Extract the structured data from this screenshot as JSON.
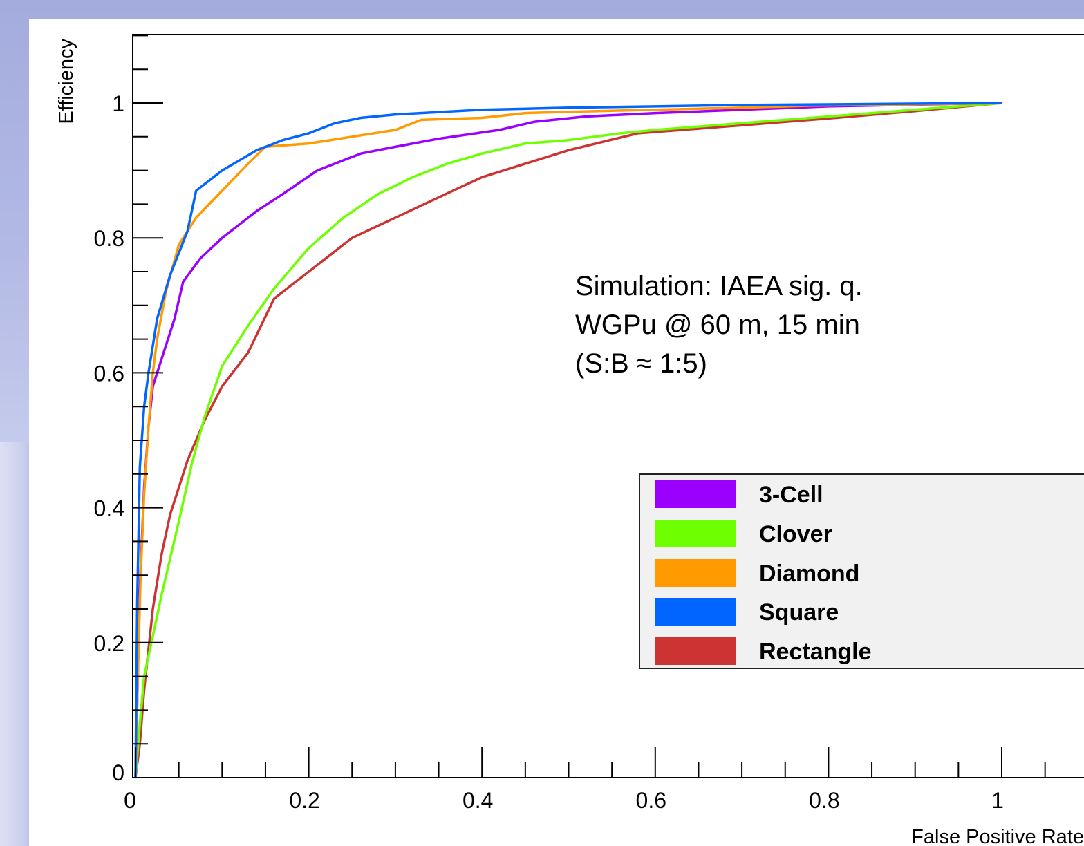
{
  "chart_data": {
    "type": "line",
    "title": "",
    "xlabel": "False Positive Rate",
    "ylabel": "Efficiency",
    "xlim": [
      0,
      1.05
    ],
    "ylim": [
      0,
      1.1
    ],
    "x_major_ticks": [
      "0",
      "0.2",
      "0.4",
      "0.6",
      "0.8",
      "1"
    ],
    "y_major_ticks": [
      "0",
      "0.2",
      "0.4",
      "0.6",
      "0.8",
      "1"
    ],
    "annotation": [
      "Simulation: IAEA sig. q.",
      "WGPu @ 60 m, 15 min",
      "(S:B ≈ 1:5)"
    ],
    "legend_position": "right",
    "series": [
      {
        "name": "3-Cell",
        "color": "#9b00ff",
        "x": [
          0,
          0.005,
          0.01,
          0.015,
          0.02,
          0.03,
          0.045,
          0.055,
          0.075,
          0.1,
          0.14,
          0.17,
          0.21,
          0.26,
          0.3,
          0.35,
          0.42,
          0.46,
          0.52,
          0.6,
          0.7,
          0.8,
          1.0
        ],
        "y": [
          0,
          0.28,
          0.43,
          0.52,
          0.58,
          0.62,
          0.68,
          0.735,
          0.77,
          0.8,
          0.84,
          0.865,
          0.9,
          0.925,
          0.935,
          0.947,
          0.96,
          0.972,
          0.98,
          0.985,
          0.99,
          0.995,
          1.0
        ]
      },
      {
        "name": "Clover",
        "color": "#6eff00",
        "x": [
          0,
          0.005,
          0.01,
          0.02,
          0.03,
          0.05,
          0.065,
          0.08,
          0.1,
          0.13,
          0.16,
          0.2,
          0.24,
          0.28,
          0.32,
          0.36,
          0.4,
          0.45,
          0.5,
          0.56,
          0.6,
          0.7,
          0.8,
          0.9,
          1.0
        ],
        "y": [
          0,
          0.08,
          0.15,
          0.21,
          0.27,
          0.38,
          0.465,
          0.535,
          0.61,
          0.67,
          0.725,
          0.785,
          0.83,
          0.865,
          0.89,
          0.91,
          0.925,
          0.94,
          0.945,
          0.955,
          0.96,
          0.97,
          0.98,
          0.99,
          1.0
        ]
      },
      {
        "name": "Diamond",
        "color": "#ff9a00",
        "x": [
          0,
          0.003,
          0.006,
          0.01,
          0.015,
          0.02,
          0.025,
          0.035,
          0.05,
          0.07,
          0.1,
          0.13,
          0.15,
          0.2,
          0.25,
          0.3,
          0.33,
          0.4,
          0.45,
          0.5,
          0.6,
          0.7,
          0.78,
          0.9,
          1.0
        ],
        "y": [
          0,
          0.17,
          0.3,
          0.42,
          0.52,
          0.6,
          0.65,
          0.72,
          0.79,
          0.83,
          0.87,
          0.91,
          0.935,
          0.94,
          0.95,
          0.96,
          0.975,
          0.978,
          0.985,
          0.987,
          0.99,
          0.993,
          0.996,
          0.998,
          1.0
        ]
      },
      {
        "name": "Square",
        "color": "#0066ff",
        "x": [
          0,
          0.002,
          0.005,
          0.01,
          0.015,
          0.025,
          0.04,
          0.06,
          0.07,
          0.09,
          0.1,
          0.12,
          0.14,
          0.17,
          0.2,
          0.23,
          0.26,
          0.3,
          0.4,
          0.5,
          0.6,
          0.7,
          0.8,
          1.0
        ],
        "y": [
          0,
          0.26,
          0.46,
          0.55,
          0.6,
          0.68,
          0.745,
          0.81,
          0.87,
          0.89,
          0.9,
          0.915,
          0.93,
          0.945,
          0.955,
          0.97,
          0.978,
          0.983,
          0.99,
          0.993,
          0.995,
          0.997,
          0.998,
          1.0
        ]
      },
      {
        "name": "Rectangle",
        "color": "#cc3333",
        "x": [
          0,
          0.005,
          0.01,
          0.02,
          0.03,
          0.04,
          0.06,
          0.08,
          0.1,
          0.13,
          0.16,
          0.2,
          0.25,
          0.3,
          0.35,
          0.4,
          0.45,
          0.5,
          0.58,
          0.7,
          0.8,
          0.9,
          1.0
        ],
        "y": [
          0,
          0.05,
          0.13,
          0.25,
          0.33,
          0.39,
          0.47,
          0.53,
          0.58,
          0.63,
          0.71,
          0.75,
          0.8,
          0.83,
          0.86,
          0.89,
          0.91,
          0.93,
          0.955,
          0.967,
          0.977,
          0.988,
          1.0
        ]
      }
    ]
  }
}
